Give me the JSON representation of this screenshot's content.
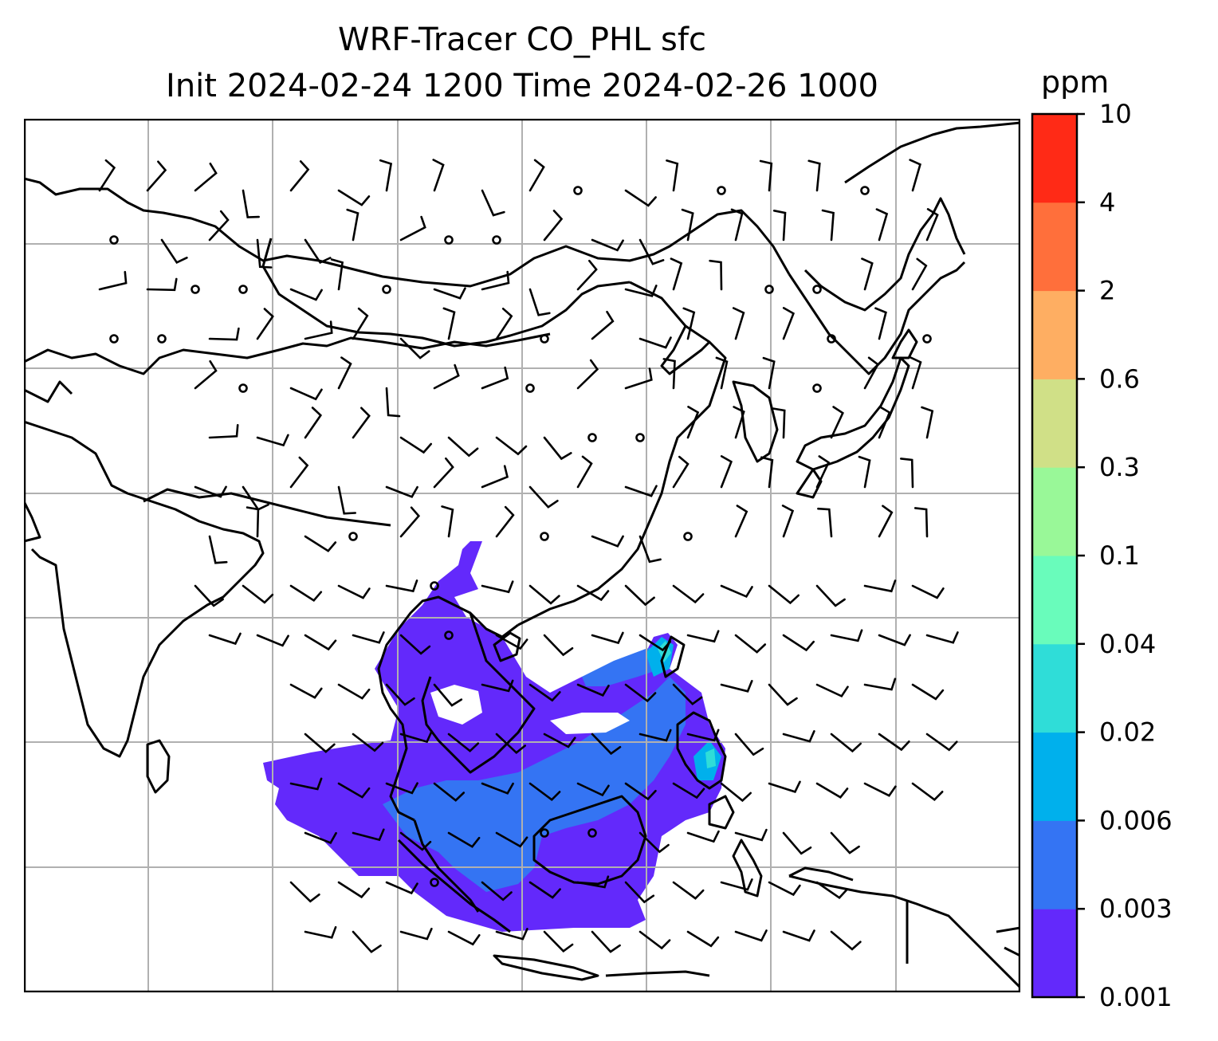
{
  "title": {
    "line1": "WRF-Tracer CO_PHL sfc",
    "line2": "Init 2024-02-24 1200 Time 2024-02-26 1000"
  },
  "colorbar": {
    "units": "ppm",
    "levels": [
      "0.001",
      "0.003",
      "0.006",
      "0.02",
      "0.04",
      "0.1",
      "0.3",
      "0.6",
      "2",
      "4",
      "10"
    ],
    "colors": [
      "#6329fb",
      "#3474f3",
      "#00b0ec",
      "#2fddd8",
      "#69fcbb",
      "#99f898",
      "#d0e087",
      "#feae62",
      "#ff6f3b",
      "#ff2a16"
    ]
  },
  "map": {
    "coastline_color": "#000000",
    "gridline_color": "#b0b0b0",
    "barb_color": "#000000",
    "tracer_fill_levels": [
      "0.001–0.003 ppm",
      "0.003–0.006 ppm",
      "0.006–0.02 ppm",
      "0.02–0.04 ppm"
    ],
    "region_shown": "East Asia, Southeast Asia, India, Maritime Continent"
  }
}
